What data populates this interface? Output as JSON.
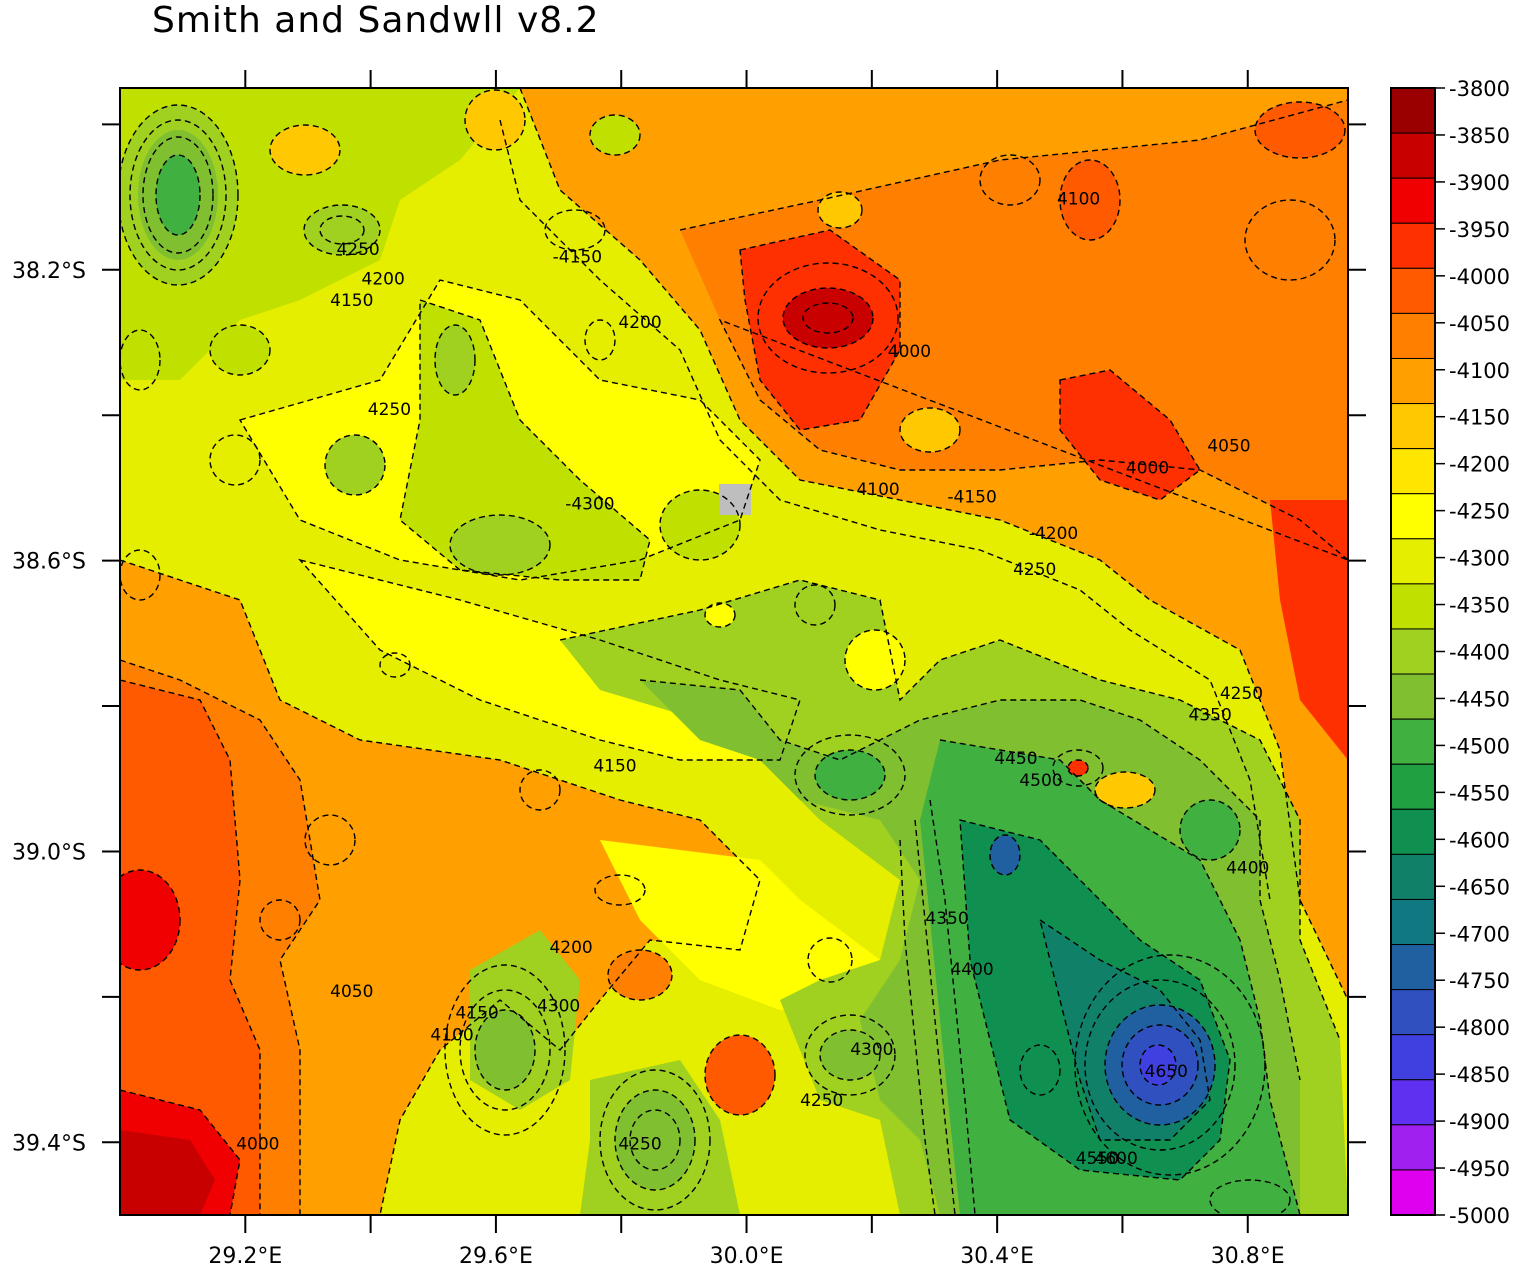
{
  "title": "Smith and Sandwll v8.2",
  "map": {
    "x_ticks": [
      "29.2°E",
      "29.6°E",
      "30.0°E",
      "30.4°E",
      "30.8°E"
    ],
    "y_ticks": [
      "38.2°S",
      "38.6°S",
      "39.0°S",
      "39.4°S"
    ],
    "x_range_deg": [
      29.0,
      30.96
    ],
    "y_range_deg": [
      -39.5,
      -37.95
    ],
    "contour_labels": [
      {
        "text": "-4150",
        "lon": 29.73,
        "lat": -38.19
      },
      {
        "text": "4200",
        "lon": 29.83,
        "lat": -38.28
      },
      {
        "text": "4250",
        "lon": 29.38,
        "lat": -38.18
      },
      {
        "text": "4200",
        "lon": 29.42,
        "lat": -38.22
      },
      {
        "text": "4150",
        "lon": 29.37,
        "lat": -38.25
      },
      {
        "text": "4250",
        "lon": 29.43,
        "lat": -38.4
      },
      {
        "text": "4000",
        "lon": 30.26,
        "lat": -38.32
      },
      {
        "text": "4100",
        "lon": 30.53,
        "lat": -38.11
      },
      {
        "text": "4050",
        "lon": 30.77,
        "lat": -38.45
      },
      {
        "text": "4000",
        "lon": 30.64,
        "lat": -38.48
      },
      {
        "text": "4100",
        "lon": 30.21,
        "lat": -38.51
      },
      {
        "text": "-4150",
        "lon": 30.36,
        "lat": -38.52
      },
      {
        "text": "-4200",
        "lon": 30.49,
        "lat": -38.57
      },
      {
        "text": "4250",
        "lon": 30.46,
        "lat": -38.62
      },
      {
        "text": "-4300",
        "lon": 29.75,
        "lat": -38.53
      },
      {
        "text": "4150",
        "lon": 29.79,
        "lat": -38.89
      },
      {
        "text": "4250",
        "lon": 30.79,
        "lat": -38.79
      },
      {
        "text": "4350",
        "lon": 30.74,
        "lat": -38.82
      },
      {
        "text": "4450",
        "lon": 30.43,
        "lat": -38.88
      },
      {
        "text": "4500",
        "lon": 30.47,
        "lat": -38.91
      },
      {
        "text": "4400",
        "lon": 30.8,
        "lat": -39.03
      },
      {
        "text": "4350",
        "lon": 30.32,
        "lat": -39.1
      },
      {
        "text": "4400",
        "lon": 30.36,
        "lat": -39.17
      },
      {
        "text": "4200",
        "lon": 29.72,
        "lat": -39.14
      },
      {
        "text": "4300",
        "lon": 29.7,
        "lat": -39.22
      },
      {
        "text": "4150",
        "lon": 29.57,
        "lat": -39.23
      },
      {
        "text": "4100",
        "lon": 29.53,
        "lat": -39.26
      },
      {
        "text": "4050",
        "lon": 29.37,
        "lat": -39.2
      },
      {
        "text": "4000",
        "lon": 29.22,
        "lat": -39.41
      },
      {
        "text": "4300",
        "lon": 30.2,
        "lat": -39.28
      },
      {
        "text": "4250",
        "lon": 30.12,
        "lat": -39.35
      },
      {
        "text": "4250",
        "lon": 29.83,
        "lat": -39.41
      },
      {
        "text": "4650",
        "lon": 30.67,
        "lat": -39.31
      },
      {
        "text": "4550",
        "lon": 30.56,
        "lat": -39.43
      },
      {
        "text": "4600",
        "lon": 30.59,
        "lat": -39.43
      }
    ]
  },
  "colorbar": {
    "labels": [
      "-3800",
      "-3850",
      "-3900",
      "-3950",
      "-4000",
      "-4050",
      "-4100",
      "-4150",
      "-4200",
      "-4250",
      "-4300",
      "-4350",
      "-4400",
      "-4450",
      "-4500",
      "-4550",
      "-4600",
      "-4650",
      "-4700",
      "-4750",
      "-4800",
      "-4850",
      "-4900",
      "-4950",
      "-5000"
    ],
    "colors": [
      "#9a0000",
      "#c80000",
      "#f00000",
      "#ff3000",
      "#ff5a00",
      "#ff8000",
      "#ffa000",
      "#ffc800",
      "#ffe600",
      "#ffff00",
      "#e6ee00",
      "#c0e000",
      "#a0d020",
      "#80c030",
      "#40b040",
      "#20a040",
      "#109050",
      "#108068",
      "#107880",
      "#2060a0",
      "#3050c0",
      "#4040e0",
      "#6030f0",
      "#a020f0",
      "#e000f0"
    ]
  },
  "chart_data": {
    "type": "heatmap",
    "title": "Smith and Sandwll v8.2",
    "x_ticks": [
      "29.2°E",
      "29.6°E",
      "30.0°E",
      "30.4°E",
      "30.8°E"
    ],
    "y_ticks": [
      "38.2°S",
      "38.6°S",
      "39.0°S",
      "39.4°S"
    ],
    "colorbar_range": [
      -5000,
      -3800
    ],
    "colorbar_step": 50,
    "contour_interval": 50,
    "notable_values": [
      {
        "lon": 30.15,
        "lat": -38.25,
        "value": -3850
      },
      {
        "lon": 29.05,
        "lat": -39.42,
        "value": -3850
      },
      {
        "lon": 30.68,
        "lat": -39.35,
        "value": -4800
      },
      {
        "lon": 29.1,
        "lat": -38.08,
        "value": -4500
      },
      {
        "lon": 29.88,
        "lat": -39.4,
        "value": -4450
      }
    ]
  }
}
